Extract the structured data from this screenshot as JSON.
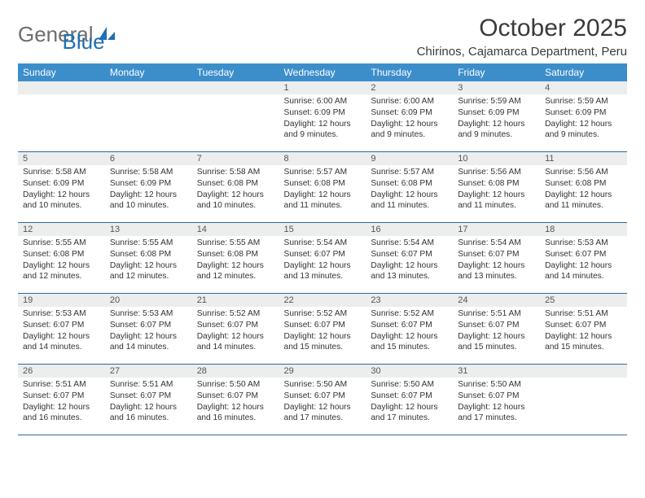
{
  "brand": {
    "general": "General",
    "blue": "Blue"
  },
  "title": "October 2025",
  "location": "Chirinos, Cajamarca Department, Peru",
  "colors": {
    "header_bg": "#3c8ecb",
    "header_text": "#ffffff",
    "daynum_bg": "#eceded",
    "row_divider": "#2f6aa0",
    "body_text": "#333333",
    "logo_general": "#6e6e6e",
    "logo_blue": "#1f6fb2"
  },
  "weekdays": [
    "Sunday",
    "Monday",
    "Tuesday",
    "Wednesday",
    "Thursday",
    "Friday",
    "Saturday"
  ],
  "weeks": [
    [
      {
        "day": "",
        "sunrise": "",
        "sunset": "",
        "daylight": ""
      },
      {
        "day": "",
        "sunrise": "",
        "sunset": "",
        "daylight": ""
      },
      {
        "day": "",
        "sunrise": "",
        "sunset": "",
        "daylight": ""
      },
      {
        "day": "1",
        "sunrise": "Sunrise: 6:00 AM",
        "sunset": "Sunset: 6:09 PM",
        "daylight": "Daylight: 12 hours and 9 minutes."
      },
      {
        "day": "2",
        "sunrise": "Sunrise: 6:00 AM",
        "sunset": "Sunset: 6:09 PM",
        "daylight": "Daylight: 12 hours and 9 minutes."
      },
      {
        "day": "3",
        "sunrise": "Sunrise: 5:59 AM",
        "sunset": "Sunset: 6:09 PM",
        "daylight": "Daylight: 12 hours and 9 minutes."
      },
      {
        "day": "4",
        "sunrise": "Sunrise: 5:59 AM",
        "sunset": "Sunset: 6:09 PM",
        "daylight": "Daylight: 12 hours and 9 minutes."
      }
    ],
    [
      {
        "day": "5",
        "sunrise": "Sunrise: 5:58 AM",
        "sunset": "Sunset: 6:09 PM",
        "daylight": "Daylight: 12 hours and 10 minutes."
      },
      {
        "day": "6",
        "sunrise": "Sunrise: 5:58 AM",
        "sunset": "Sunset: 6:09 PM",
        "daylight": "Daylight: 12 hours and 10 minutes."
      },
      {
        "day": "7",
        "sunrise": "Sunrise: 5:58 AM",
        "sunset": "Sunset: 6:08 PM",
        "daylight": "Daylight: 12 hours and 10 minutes."
      },
      {
        "day": "8",
        "sunrise": "Sunrise: 5:57 AM",
        "sunset": "Sunset: 6:08 PM",
        "daylight": "Daylight: 12 hours and 11 minutes."
      },
      {
        "day": "9",
        "sunrise": "Sunrise: 5:57 AM",
        "sunset": "Sunset: 6:08 PM",
        "daylight": "Daylight: 12 hours and 11 minutes."
      },
      {
        "day": "10",
        "sunrise": "Sunrise: 5:56 AM",
        "sunset": "Sunset: 6:08 PM",
        "daylight": "Daylight: 12 hours and 11 minutes."
      },
      {
        "day": "11",
        "sunrise": "Sunrise: 5:56 AM",
        "sunset": "Sunset: 6:08 PM",
        "daylight": "Daylight: 12 hours and 11 minutes."
      }
    ],
    [
      {
        "day": "12",
        "sunrise": "Sunrise: 5:55 AM",
        "sunset": "Sunset: 6:08 PM",
        "daylight": "Daylight: 12 hours and 12 minutes."
      },
      {
        "day": "13",
        "sunrise": "Sunrise: 5:55 AM",
        "sunset": "Sunset: 6:08 PM",
        "daylight": "Daylight: 12 hours and 12 minutes."
      },
      {
        "day": "14",
        "sunrise": "Sunrise: 5:55 AM",
        "sunset": "Sunset: 6:08 PM",
        "daylight": "Daylight: 12 hours and 12 minutes."
      },
      {
        "day": "15",
        "sunrise": "Sunrise: 5:54 AM",
        "sunset": "Sunset: 6:07 PM",
        "daylight": "Daylight: 12 hours and 13 minutes."
      },
      {
        "day": "16",
        "sunrise": "Sunrise: 5:54 AM",
        "sunset": "Sunset: 6:07 PM",
        "daylight": "Daylight: 12 hours and 13 minutes."
      },
      {
        "day": "17",
        "sunrise": "Sunrise: 5:54 AM",
        "sunset": "Sunset: 6:07 PM",
        "daylight": "Daylight: 12 hours and 13 minutes."
      },
      {
        "day": "18",
        "sunrise": "Sunrise: 5:53 AM",
        "sunset": "Sunset: 6:07 PM",
        "daylight": "Daylight: 12 hours and 14 minutes."
      }
    ],
    [
      {
        "day": "19",
        "sunrise": "Sunrise: 5:53 AM",
        "sunset": "Sunset: 6:07 PM",
        "daylight": "Daylight: 12 hours and 14 minutes."
      },
      {
        "day": "20",
        "sunrise": "Sunrise: 5:53 AM",
        "sunset": "Sunset: 6:07 PM",
        "daylight": "Daylight: 12 hours and 14 minutes."
      },
      {
        "day": "21",
        "sunrise": "Sunrise: 5:52 AM",
        "sunset": "Sunset: 6:07 PM",
        "daylight": "Daylight: 12 hours and 14 minutes."
      },
      {
        "day": "22",
        "sunrise": "Sunrise: 5:52 AM",
        "sunset": "Sunset: 6:07 PM",
        "daylight": "Daylight: 12 hours and 15 minutes."
      },
      {
        "day": "23",
        "sunrise": "Sunrise: 5:52 AM",
        "sunset": "Sunset: 6:07 PM",
        "daylight": "Daylight: 12 hours and 15 minutes."
      },
      {
        "day": "24",
        "sunrise": "Sunrise: 5:51 AM",
        "sunset": "Sunset: 6:07 PM",
        "daylight": "Daylight: 12 hours and 15 minutes."
      },
      {
        "day": "25",
        "sunrise": "Sunrise: 5:51 AM",
        "sunset": "Sunset: 6:07 PM",
        "daylight": "Daylight: 12 hours and 15 minutes."
      }
    ],
    [
      {
        "day": "26",
        "sunrise": "Sunrise: 5:51 AM",
        "sunset": "Sunset: 6:07 PM",
        "daylight": "Daylight: 12 hours and 16 minutes."
      },
      {
        "day": "27",
        "sunrise": "Sunrise: 5:51 AM",
        "sunset": "Sunset: 6:07 PM",
        "daylight": "Daylight: 12 hours and 16 minutes."
      },
      {
        "day": "28",
        "sunrise": "Sunrise: 5:50 AM",
        "sunset": "Sunset: 6:07 PM",
        "daylight": "Daylight: 12 hours and 16 minutes."
      },
      {
        "day": "29",
        "sunrise": "Sunrise: 5:50 AM",
        "sunset": "Sunset: 6:07 PM",
        "daylight": "Daylight: 12 hours and 17 minutes."
      },
      {
        "day": "30",
        "sunrise": "Sunrise: 5:50 AM",
        "sunset": "Sunset: 6:07 PM",
        "daylight": "Daylight: 12 hours and 17 minutes."
      },
      {
        "day": "31",
        "sunrise": "Sunrise: 5:50 AM",
        "sunset": "Sunset: 6:07 PM",
        "daylight": "Daylight: 12 hours and 17 minutes."
      },
      {
        "day": "",
        "sunrise": "",
        "sunset": "",
        "daylight": ""
      }
    ]
  ]
}
